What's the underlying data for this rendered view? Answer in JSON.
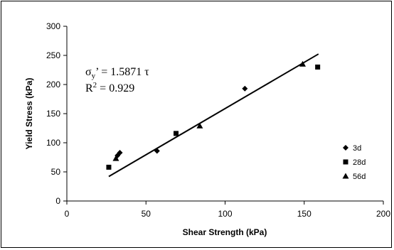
{
  "chart_data": {
    "type": "scatter",
    "title": "",
    "xlabel": "Shear Strength (kPa)",
    "ylabel": "Yield Stress (kPa)",
    "xlim": [
      0,
      200
    ],
    "ylim": [
      0,
      300
    ],
    "x_ticks": [
      "0",
      "50",
      "100",
      "150",
      "200"
    ],
    "y_ticks": [
      "0",
      "50",
      "100",
      "150",
      "200",
      "250",
      "300"
    ],
    "grid": false,
    "legend_position": "right",
    "series": [
      {
        "name": "3d",
        "marker": "diamond",
        "points": [
          [
            32,
            78
          ],
          [
            33.5,
            83
          ],
          [
            57,
            86
          ],
          [
            112.5,
            193
          ]
        ]
      },
      {
        "name": "28d",
        "marker": "square",
        "points": [
          [
            26.5,
            58
          ],
          [
            69,
            116
          ],
          [
            158.5,
            230
          ]
        ]
      },
      {
        "name": "56d",
        "marker": "triangle",
        "points": [
          [
            31,
            73
          ],
          [
            84,
            129
          ],
          [
            149,
            235
          ]
        ]
      }
    ],
    "trendline": {
      "slope": 1.5871,
      "x_range": [
        26.5,
        159
      ]
    },
    "annotation": {
      "eq_prefix": "σ",
      "eq_sub": "y",
      "eq_rest": "’ = 1.5871 τ",
      "r2_prefix": "R",
      "r2_sup": "2",
      "r2_rest": " = 0.929"
    },
    "marker_color": "#000000"
  }
}
